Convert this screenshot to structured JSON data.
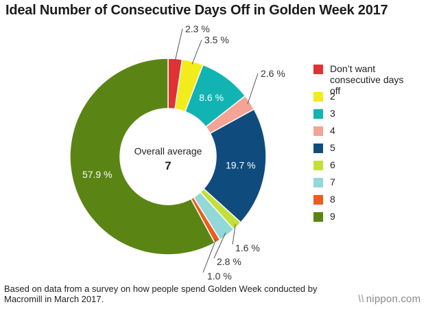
{
  "title": "Ideal Number of Consecutive Days Off in Golden Week 2017",
  "chart_data": {
    "type": "pie",
    "subtype": "donut",
    "categories": [
      "Don’t want consecutive days off",
      "2",
      "3",
      "4",
      "5",
      "6",
      "7",
      "8",
      "9"
    ],
    "values": [
      2.3,
      3.5,
      8.6,
      2.6,
      19.7,
      1.6,
      2.8,
      1.0,
      57.9
    ],
    "value_labels": [
      "2.3 %",
      "3.5 %",
      "8.6 %",
      "2.6 %",
      "19.7 %",
      "1.6 %",
      "2.8 %",
      "1.0 %",
      "57.9 %"
    ],
    "colors": [
      "#e03233",
      "#f2ec1c",
      "#12b3b3",
      "#f4a394",
      "#0f4c7d",
      "#c3e03a",
      "#93d8d8",
      "#ec5d1d",
      "#5a8514"
    ],
    "label_colors": [
      "#333333",
      "#333333",
      "#ffffff",
      "#333333",
      "#ffffff",
      "#333333",
      "#333333",
      "#333333",
      "#ffffff"
    ],
    "center_label": "Overall average",
    "center_value": "7",
    "legend_position": "right"
  },
  "footnote": "Based on data from a survey on how people spend Golden Week conducted by Macromill in March 2017.",
  "logo": {
    "mark": "\\\\",
    "text": "nippon.com"
  }
}
